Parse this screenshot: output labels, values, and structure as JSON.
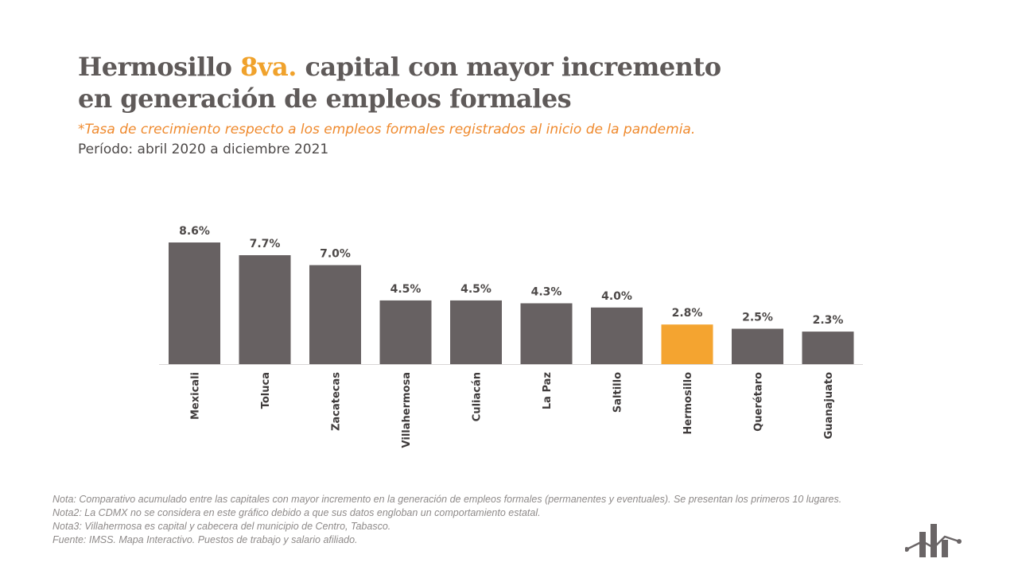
{
  "header": {
    "title_line1_pre": "Hermosillo ",
    "title_line1_accent": "8va.",
    "title_line1_post": " capital con mayor incremento",
    "title_line2": "en generación de empleos formales",
    "subtitle": "*Tasa de crecimiento respecto a los empleos formales registrados al inicio de la pandemia.",
    "period": "Período: abril 2020 a diciembre 2021"
  },
  "colors": {
    "bar": "#676162",
    "highlight": "#f4a430",
    "title": "#5f5a59",
    "accent": "#f0a22c",
    "subtitle": "#ef8a2e"
  },
  "chart_data": {
    "type": "bar",
    "categories": [
      "Mexicali",
      "Toluca",
      "Zacatecas",
      "Villahermosa",
      "Culiacán",
      "La Paz",
      "Saltillo",
      "Hermosillo",
      "Querétaro",
      "Guanajuato"
    ],
    "values": [
      8.6,
      7.7,
      7.0,
      4.5,
      4.5,
      4.3,
      4.0,
      2.8,
      2.5,
      2.3
    ],
    "value_labels": [
      "8.6%",
      "7.7%",
      "7.0%",
      "4.5%",
      "4.5%",
      "4.3%",
      "4.0%",
      "2.8%",
      "2.5%",
      "2.3%"
    ],
    "highlight_category": "Hermosillo",
    "ylim": [
      0,
      8.6
    ],
    "grid": false,
    "legend": "none"
  },
  "notes": [
    "Nota: Comparativo acumulado entre las capitales con mayor incremento en la generación de empleos formales (permanentes y eventuales). Se presentan los primeros 10 lugares.",
    "Nota2: La CDMX no se considera en este gráfico debido a que sus datos engloban un comportamiento estatal.",
    "Nota3: Villahermosa es capital y cabecera del municipio de Centro, Tabasco.",
    "Fuente: IMSS. Mapa Interactivo. Puestos de trabajo y salario afiliado."
  ],
  "logo": {
    "icon": "bar-chart-logo-icon"
  }
}
